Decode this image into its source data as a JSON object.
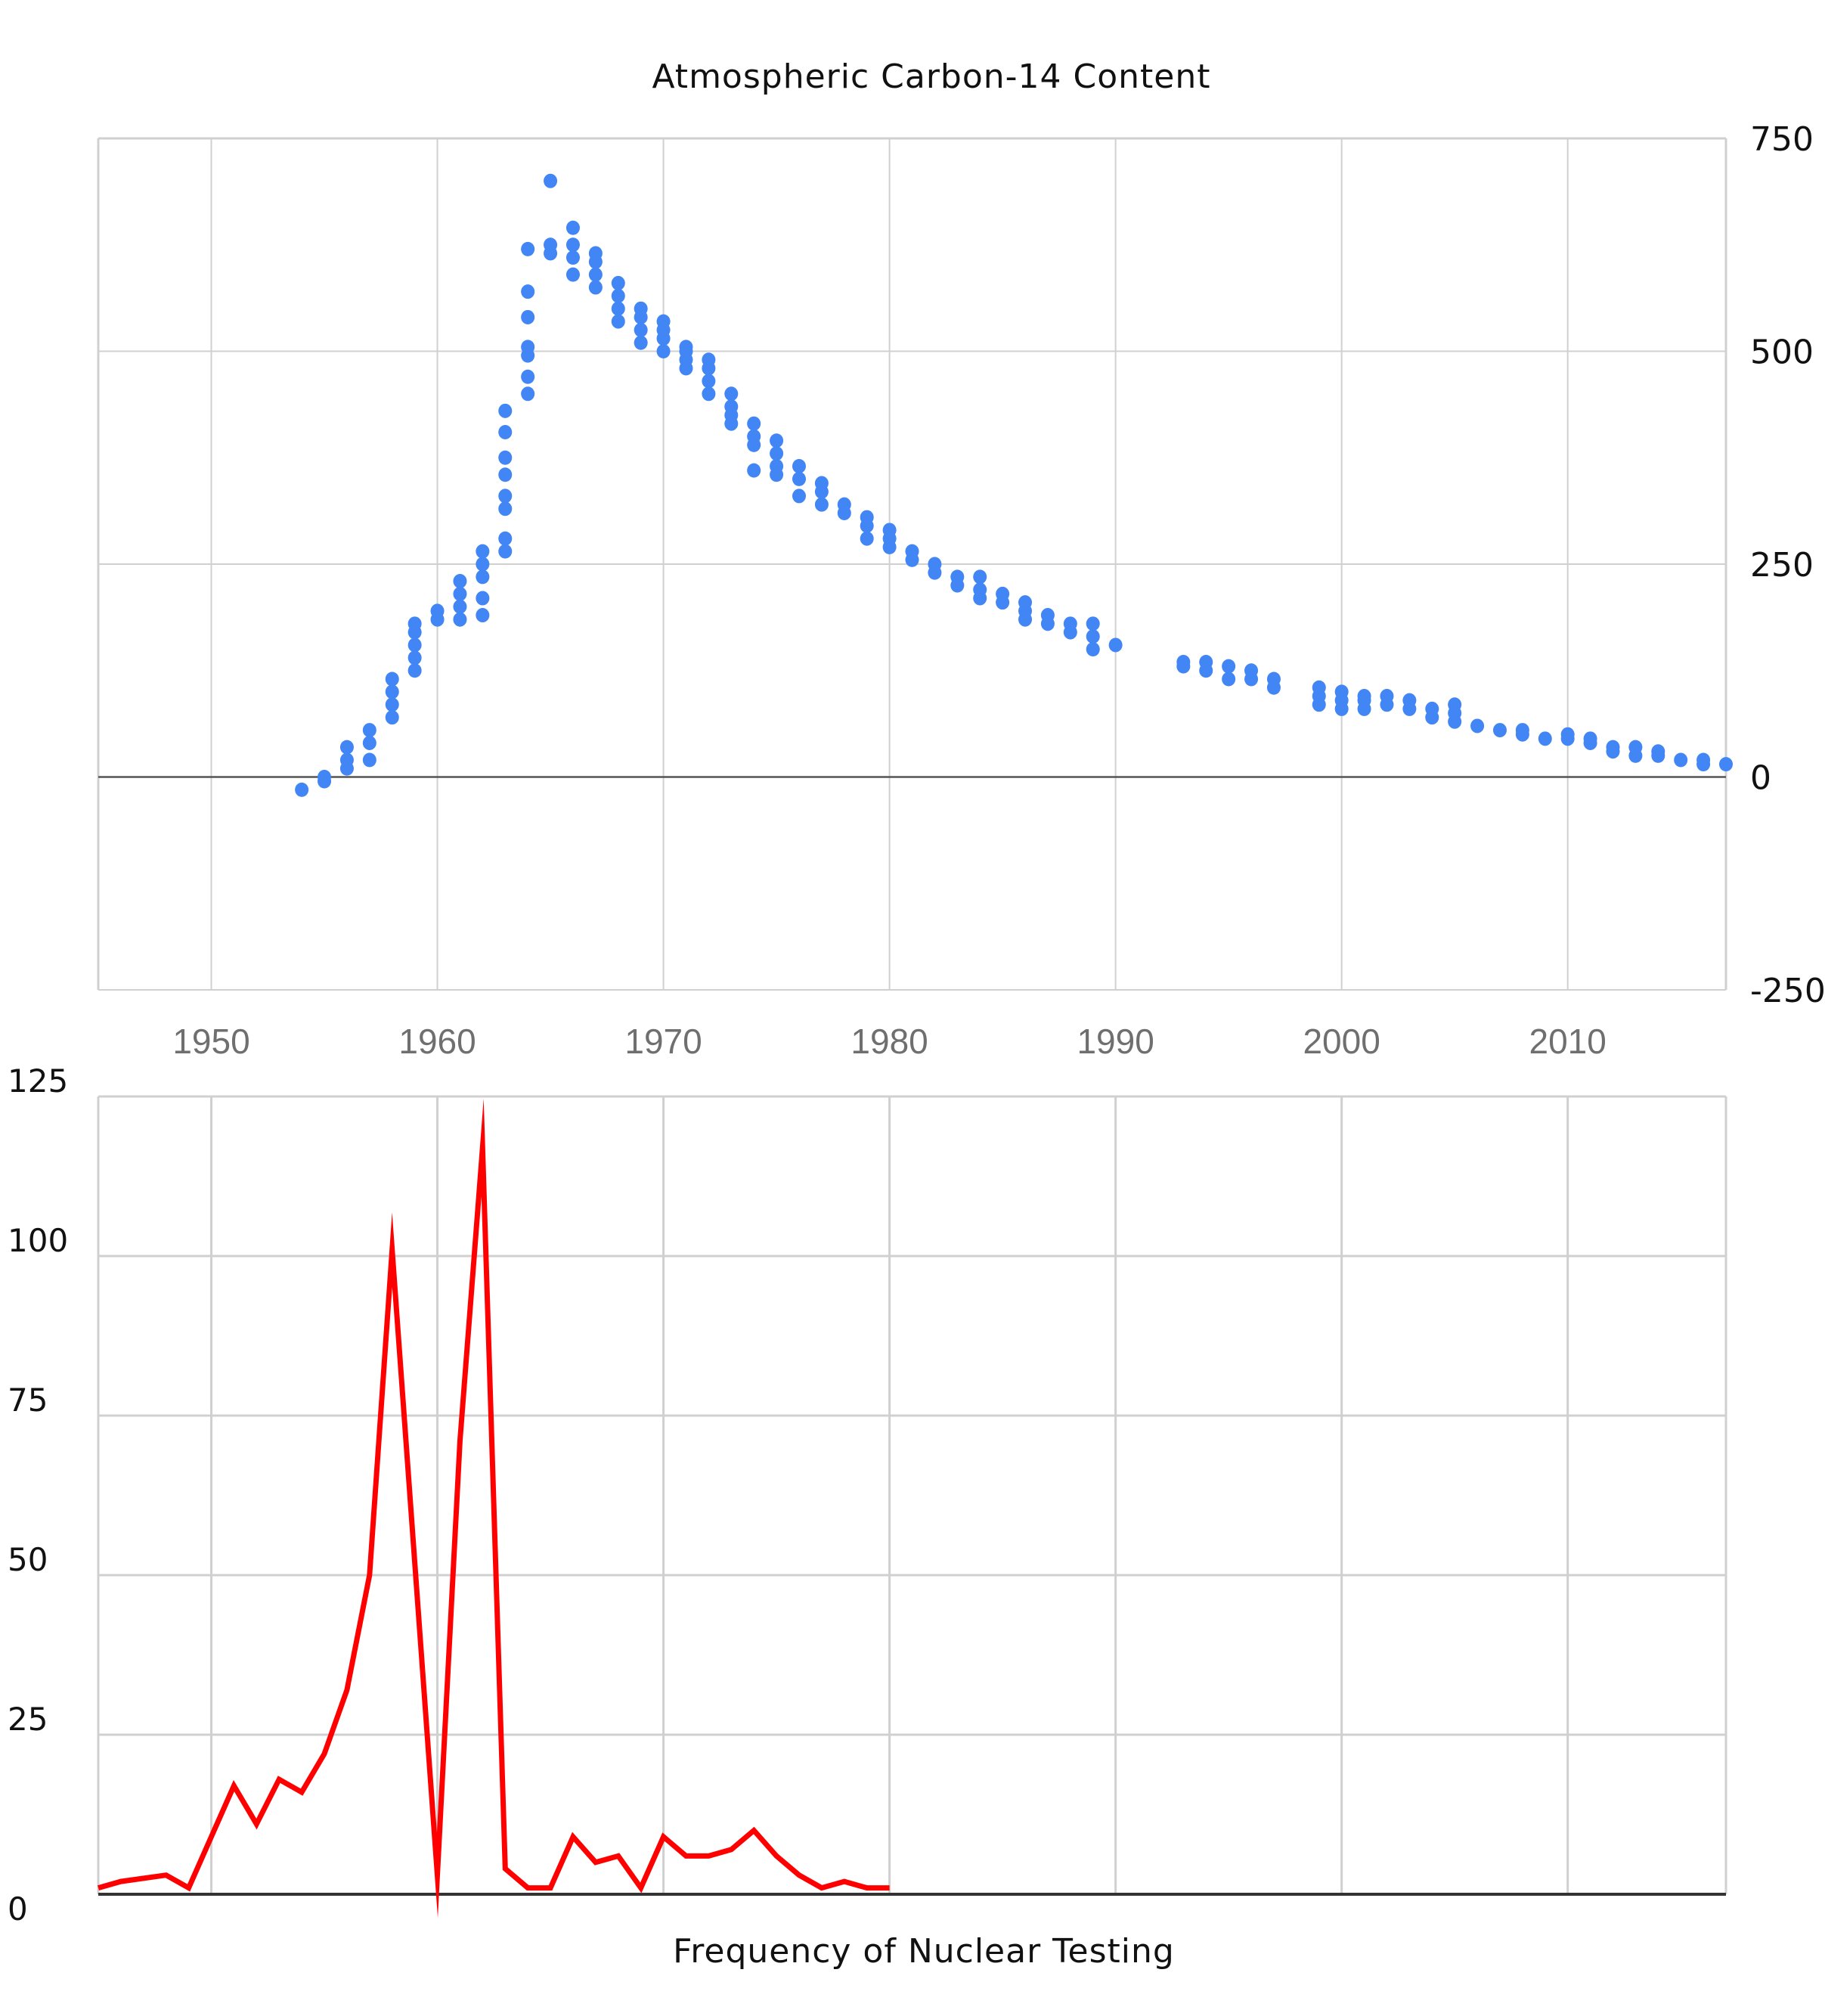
{
  "chart_data": [
    {
      "type": "scatter",
      "title": "Atmospheric Carbon-14 Content",
      "xlabel": "",
      "ylabel": "",
      "x_ticks": [
        "1950",
        "1960",
        "1970",
        "1980",
        "1990",
        "2000",
        "2010"
      ],
      "y_ticks": [
        "750",
        "500",
        "250",
        "0",
        "-250"
      ],
      "xlim": [
        1945,
        2017
      ],
      "ylim": [
        -250,
        750
      ],
      "grid": true,
      "colors": {
        "points": "#4285f4",
        "grid": "#d0d0d0",
        "zero_line": "#555555"
      },
      "series": [
        {
          "values": [
            [
              1954,
              -15
            ],
            [
              1955,
              -5
            ],
            [
              1955,
              0
            ],
            [
              1956,
              10
            ],
            [
              1956,
              20
            ],
            [
              1956,
              35
            ],
            [
              1957,
              20
            ],
            [
              1957,
              40
            ],
            [
              1957,
              55
            ],
            [
              1958,
              70
            ],
            [
              1958,
              85
            ],
            [
              1958,
              100
            ],
            [
              1958,
              115
            ],
            [
              1959,
              125
            ],
            [
              1959,
              140
            ],
            [
              1959,
              155
            ],
            [
              1959,
              170
            ],
            [
              1959,
              180
            ],
            [
              1960,
              185
            ],
            [
              1960,
              195
            ],
            [
              1961,
              185
            ],
            [
              1961,
              200
            ],
            [
              1961,
              215
            ],
            [
              1961,
              230
            ],
            [
              1962,
              190
            ],
            [
              1962,
              210
            ],
            [
              1962,
              235
            ],
            [
              1962,
              250
            ],
            [
              1962,
              265
            ],
            [
              1963,
              265
            ],
            [
              1963,
              280
            ],
            [
              1963,
              315
            ],
            [
              1963,
              330
            ],
            [
              1963,
              355
            ],
            [
              1963,
              375
            ],
            [
              1963,
              405
            ],
            [
              1963,
              430
            ],
            [
              1964,
              450
            ],
            [
              1964,
              470
            ],
            [
              1964,
              495
            ],
            [
              1964,
              505
            ],
            [
              1964,
              540
            ],
            [
              1964,
              570
            ],
            [
              1964,
              620
            ],
            [
              1965,
              615
            ],
            [
              1965,
              625
            ],
            [
              1965,
              700
            ],
            [
              1966,
              590
            ],
            [
              1966,
              610
            ],
            [
              1966,
              625
            ],
            [
              1966,
              645
            ],
            [
              1967,
              575
            ],
            [
              1967,
              590
            ],
            [
              1967,
              605
            ],
            [
              1967,
              615
            ],
            [
              1968,
              535
            ],
            [
              1968,
              550
            ],
            [
              1968,
              565
            ],
            [
              1968,
              580
            ],
            [
              1969,
              510
            ],
            [
              1969,
              525
            ],
            [
              1969,
              540
            ],
            [
              1969,
              550
            ],
            [
              1970,
              500
            ],
            [
              1970,
              515
            ],
            [
              1970,
              525
            ],
            [
              1970,
              535
            ],
            [
              1971,
              480
            ],
            [
              1971,
              490
            ],
            [
              1971,
              500
            ],
            [
              1971,
              505
            ],
            [
              1972,
              450
            ],
            [
              1972,
              465
            ],
            [
              1972,
              480
            ],
            [
              1972,
              490
            ],
            [
              1973,
              415
            ],
            [
              1973,
              425
            ],
            [
              1973,
              435
            ],
            [
              1973,
              450
            ],
            [
              1974,
              360
            ],
            [
              1974,
              390
            ],
            [
              1974,
              400
            ],
            [
              1974,
              415
            ],
            [
              1975,
              355
            ],
            [
              1975,
              365
            ],
            [
              1975,
              380
            ],
            [
              1975,
              395
            ],
            [
              1976,
              330
            ],
            [
              1976,
              350
            ],
            [
              1976,
              365
            ],
            [
              1977,
              320
            ],
            [
              1977,
              335
            ],
            [
              1977,
              345
            ],
            [
              1978,
              310
            ],
            [
              1978,
              320
            ],
            [
              1979,
              280
            ],
            [
              1979,
              295
            ],
            [
              1979,
              305
            ],
            [
              1980,
              270
            ],
            [
              1980,
              280
            ],
            [
              1980,
              290
            ],
            [
              1981,
              255
            ],
            [
              1981,
              265
            ],
            [
              1982,
              240
            ],
            [
              1982,
              250
            ],
            [
              1983,
              225
            ],
            [
              1983,
              235
            ],
            [
              1984,
              210
            ],
            [
              1984,
              220
            ],
            [
              1984,
              235
            ],
            [
              1985,
              205
            ],
            [
              1985,
              215
            ],
            [
              1986,
              185
            ],
            [
              1986,
              195
            ],
            [
              1986,
              205
            ],
            [
              1987,
              180
            ],
            [
              1987,
              190
            ],
            [
              1988,
              170
            ],
            [
              1988,
              180
            ],
            [
              1989,
              150
            ],
            [
              1989,
              165
            ],
            [
              1989,
              180
            ],
            [
              1990,
              155
            ],
            [
              1993,
              130
            ],
            [
              1993,
              135
            ],
            [
              1994,
              125
            ],
            [
              1994,
              135
            ],
            [
              1995,
              115
            ],
            [
              1995,
              130
            ],
            [
              1996,
              115
            ],
            [
              1996,
              125
            ],
            [
              1997,
              105
            ],
            [
              1997,
              115
            ],
            [
              1999,
              85
            ],
            [
              1999,
              95
            ],
            [
              1999,
              105
            ],
            [
              2000,
              80
            ],
            [
              2000,
              90
            ],
            [
              2000,
              100
            ],
            [
              2001,
              80
            ],
            [
              2001,
              90
            ],
            [
              2001,
              95
            ],
            [
              2002,
              85
            ],
            [
              2002,
              95
            ],
            [
              2003,
              80
            ],
            [
              2003,
              90
            ],
            [
              2004,
              70
            ],
            [
              2004,
              80
            ],
            [
              2005,
              65
            ],
            [
              2005,
              75
            ],
            [
              2005,
              85
            ],
            [
              2006,
              60
            ],
            [
              2007,
              55
            ],
            [
              2008,
              50
            ],
            [
              2008,
              55
            ],
            [
              2009,
              45
            ],
            [
              2010,
              45
            ],
            [
              2010,
              50
            ],
            [
              2011,
              40
            ],
            [
              2011,
              45
            ],
            [
              2012,
              30
            ],
            [
              2012,
              35
            ],
            [
              2013,
              25
            ],
            [
              2013,
              35
            ],
            [
              2014,
              25
            ],
            [
              2014,
              30
            ],
            [
              2015,
              20
            ],
            [
              2016,
              15
            ],
            [
              2016,
              20
            ],
            [
              2017,
              15
            ]
          ]
        }
      ]
    },
    {
      "type": "line",
      "title": "Frequency of Nuclear Testing",
      "xlabel": "",
      "ylabel": "",
      "y_ticks": [
        "125",
        "100",
        "75",
        "50",
        "25",
        "0"
      ],
      "xlim": [
        1945,
        2017
      ],
      "ylim": [
        0,
        125
      ],
      "grid": true,
      "colors": {
        "line": "#ff0000",
        "grid": "#d0d0d0",
        "baseline": "#333333"
      },
      "series": [
        {
          "x": [
            1945,
            1946,
            1948,
            1949,
            1950,
            1951,
            1952,
            1953,
            1954,
            1955,
            1956,
            1957,
            1958,
            1959,
            1960,
            1961,
            1962,
            1963,
            1964,
            1965,
            1966,
            1967,
            1968,
            1969,
            1970,
            1971,
            1972,
            1973,
            1974,
            1975,
            1976,
            1977,
            1978,
            1979,
            1980
          ],
          "values": [
            1,
            2,
            3,
            1,
            9,
            17,
            11,
            18,
            16,
            22,
            32,
            50,
            101,
            52,
            3,
            71,
            117,
            4,
            1,
            1,
            9,
            5,
            6,
            1,
            9,
            6,
            6,
            7,
            10,
            6,
            3,
            1,
            2,
            1,
            1
          ]
        }
      ]
    }
  ]
}
